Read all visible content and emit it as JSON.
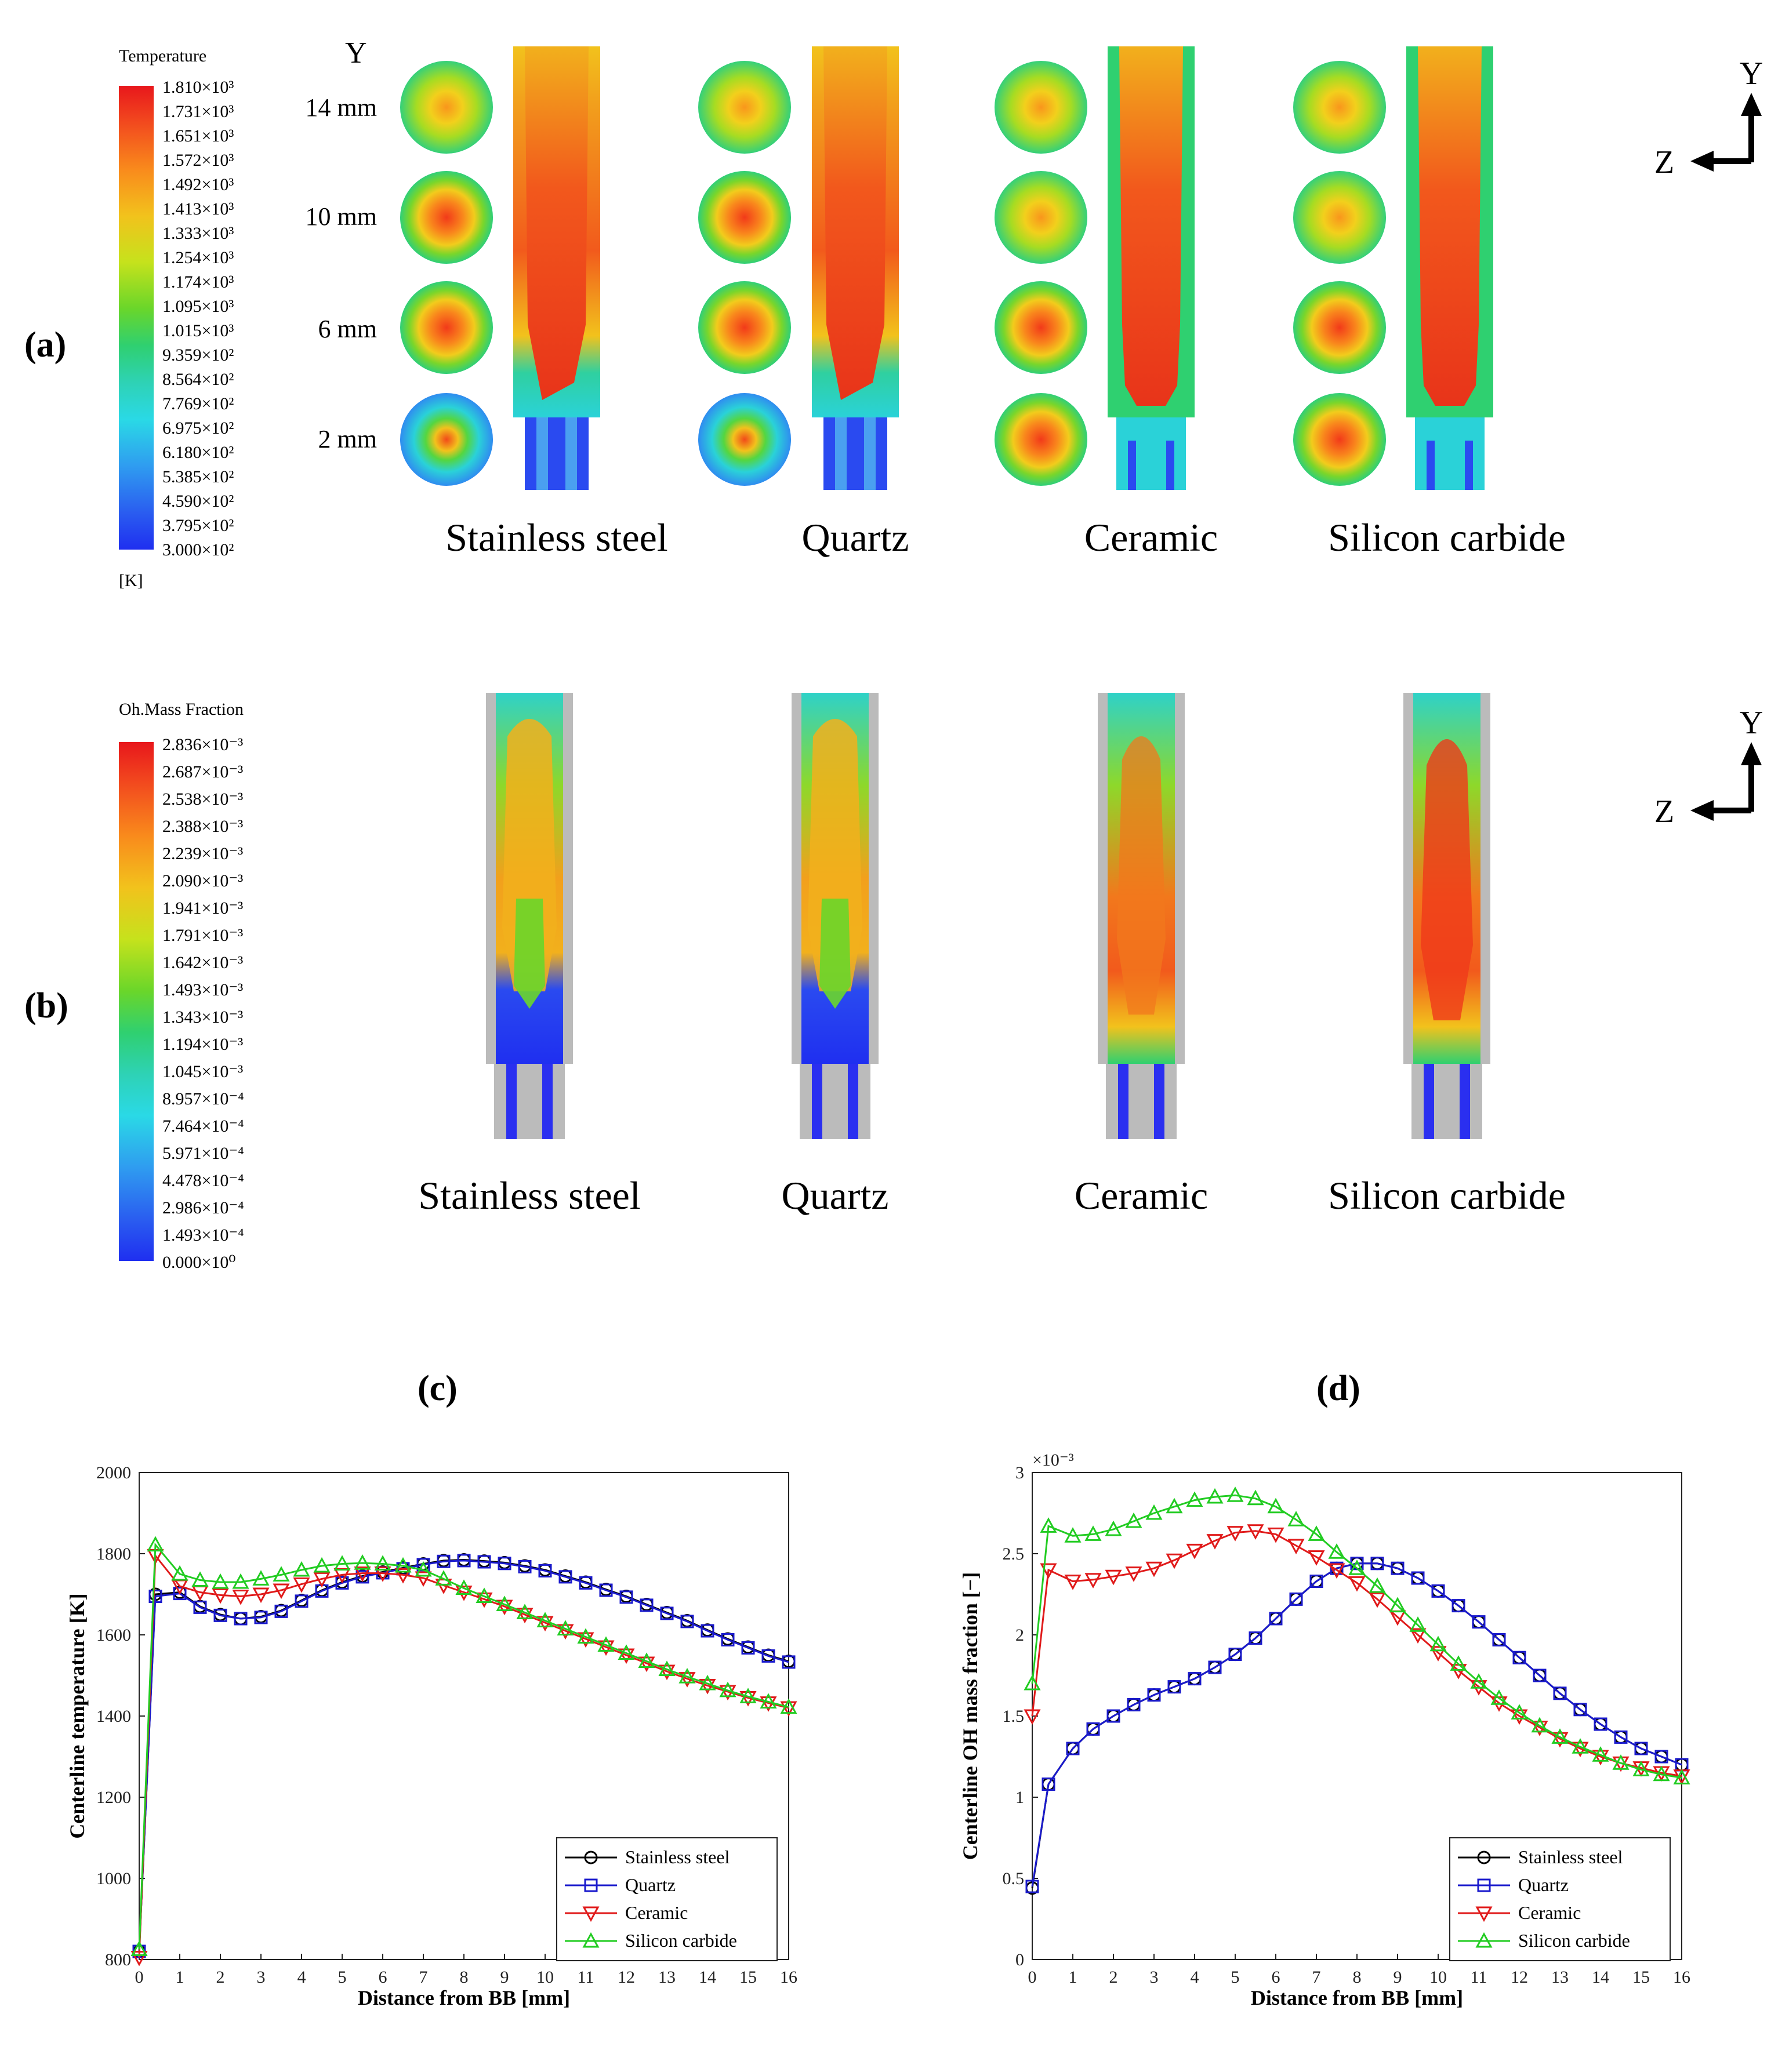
{
  "panel_labels": {
    "a": "(a)",
    "b": "(b)",
    "c": "(c)",
    "d": "(d)"
  },
  "colormap_a": {
    "title": "Temperature",
    "unit": "[K]",
    "ticks": [
      "1.810×10³",
      "1.731×10³",
      "1.651×10³",
      "1.572×10³",
      "1.492×10³",
      "1.413×10³",
      "1.333×10³",
      "1.254×10³",
      "1.174×10³",
      "1.095×10³",
      "1.015×10³",
      "9.359×10²",
      "8.564×10²",
      "7.769×10²",
      "6.975×10²",
      "6.180×10²",
      "5.385×10²",
      "4.590×10²",
      "3.795×10²",
      "3.000×10²"
    ]
  },
  "colormap_b": {
    "title": "Oh.Mass Fraction",
    "ticks": [
      "2.836×10⁻³",
      "2.687×10⁻³",
      "2.538×10⁻³",
      "2.388×10⁻³",
      "2.239×10⁻³",
      "2.090×10⁻³",
      "1.941×10⁻³",
      "1.791×10⁻³",
      "1.642×10⁻³",
      "1.493×10⁻³",
      "1.343×10⁻³",
      "1.194×10⁻³",
      "1.045×10⁻³",
      "8.957×10⁻⁴",
      "7.464×10⁻⁴",
      "5.971×10⁻⁴",
      "4.478×10⁻⁴",
      "2.986×10⁻⁴",
      "1.493×10⁻⁴",
      "0.000×10⁰"
    ]
  },
  "contour_a": {
    "y_axis_label": "Y",
    "slice_labels": [
      "14 mm",
      "10 mm",
      "6 mm",
      "2 mm"
    ],
    "materials": [
      "Stainless steel",
      "Quartz",
      "Ceramic",
      "Silicon carbide"
    ]
  },
  "contour_b": {
    "materials": [
      "Stainless steel",
      "Quartz",
      "Ceramic",
      "Silicon carbide"
    ]
  },
  "axes_indicator": {
    "y": "Y",
    "z": "Z"
  },
  "colors": {
    "stainless": "#000000",
    "quartz": "#1a1acc",
    "ceramic": "#e01a1a",
    "silicon": "#22cc22"
  },
  "chart_data": [
    {
      "type": "line",
      "id": "c",
      "title": "",
      "xlabel": "Distance from BB [mm]",
      "ylabel": "Centerline temperature [K]",
      "xlim": [
        0,
        16
      ],
      "ylim": [
        800,
        2000
      ],
      "xticks": [
        0,
        1,
        2,
        3,
        4,
        5,
        6,
        7,
        8,
        9,
        10,
        11,
        12,
        13,
        14,
        15,
        16
      ],
      "yticks": [
        800,
        1000,
        1200,
        1400,
        1600,
        1800,
        2000
      ],
      "x": [
        0,
        0.4,
        1,
        1.5,
        2,
        2.5,
        3,
        3.5,
        4,
        4.5,
        5,
        5.5,
        6,
        6.5,
        7,
        7.5,
        8,
        8.5,
        9,
        9.5,
        10,
        10.5,
        11,
        11.5,
        12,
        12.5,
        13,
        13.5,
        14,
        14.5,
        15,
        15.5,
        16
      ],
      "series": [
        {
          "name": "Stainless steel",
          "marker": "circle",
          "color": "#000000",
          "values": [
            820,
            1700,
            1705,
            1670,
            1650,
            1640,
            1645,
            1660,
            1685,
            1710,
            1730,
            1745,
            1755,
            1765,
            1775,
            1783,
            1785,
            1782,
            1778,
            1770,
            1760,
            1745,
            1730,
            1712,
            1695,
            1675,
            1655,
            1635,
            1612,
            1590,
            1570,
            1550,
            1535
          ]
        },
        {
          "name": "Quartz",
          "marker": "square",
          "color": "#1a1acc",
          "values": [
            820,
            1695,
            1702,
            1668,
            1648,
            1640,
            1643,
            1658,
            1683,
            1708,
            1728,
            1743,
            1753,
            1763,
            1773,
            1781,
            1783,
            1780,
            1776,
            1768,
            1758,
            1743,
            1728,
            1710,
            1693,
            1673,
            1653,
            1633,
            1610,
            1588,
            1568,
            1548,
            1533
          ]
        },
        {
          "name": "Ceramic",
          "marker": "triangle-down",
          "color": "#e01a1a",
          "values": [
            805,
            1795,
            1720,
            1705,
            1698,
            1695,
            1700,
            1710,
            1725,
            1738,
            1748,
            1752,
            1752,
            1748,
            1740,
            1722,
            1705,
            1688,
            1670,
            1650,
            1630,
            1610,
            1590,
            1570,
            1550,
            1530,
            1510,
            1492,
            1475,
            1460,
            1445,
            1432,
            1420
          ]
        },
        {
          "name": "Silicon carbide",
          "marker": "triangle-up",
          "color": "#22cc22",
          "values": [
            825,
            1822,
            1750,
            1735,
            1730,
            1730,
            1738,
            1748,
            1760,
            1770,
            1775,
            1777,
            1775,
            1770,
            1760,
            1738,
            1715,
            1695,
            1675,
            1655,
            1635,
            1615,
            1595,
            1575,
            1555,
            1535,
            1515,
            1497,
            1480,
            1463,
            1448,
            1435,
            1422
          ]
        }
      ]
    },
    {
      "type": "line",
      "id": "d",
      "title": "",
      "exponent_label": "×10⁻³",
      "xlabel": "Distance from BB [mm]",
      "ylabel": "Centerline OH mass fraction [−]",
      "xlim": [
        0,
        16
      ],
      "ylim": [
        0,
        3
      ],
      "xticks": [
        0,
        1,
        2,
        3,
        4,
        5,
        6,
        7,
        8,
        9,
        10,
        11,
        12,
        13,
        14,
        15,
        16
      ],
      "yticks": [
        0,
        0.5,
        1,
        1.5,
        2,
        2.5,
        3
      ],
      "ytick_labels": [
        "0",
        "0.5",
        "1",
        "1.5",
        "2",
        "2.5",
        "3"
      ],
      "x": [
        0,
        0.4,
        1,
        1.5,
        2,
        2.5,
        3,
        3.5,
        4,
        4.5,
        5,
        5.5,
        6,
        6.5,
        7,
        7.5,
        8,
        8.5,
        9,
        9.5,
        10,
        10.5,
        11,
        11.5,
        12,
        12.5,
        13,
        13.5,
        14,
        14.5,
        15,
        15.5,
        16
      ],
      "series": [
        {
          "name": "Stainless steel",
          "marker": "circle",
          "color": "#000000",
          "values": [
            0.44,
            1.08,
            1.3,
            1.42,
            1.5,
            1.57,
            1.63,
            1.68,
            1.73,
            1.8,
            1.88,
            1.98,
            2.1,
            2.22,
            2.33,
            2.41,
            2.44,
            2.44,
            2.41,
            2.35,
            2.27,
            2.18,
            2.08,
            1.97,
            1.86,
            1.75,
            1.64,
            1.54,
            1.45,
            1.37,
            1.3,
            1.25,
            1.2
          ]
        },
        {
          "name": "Quartz",
          "marker": "square",
          "color": "#1a1acc",
          "values": [
            0.45,
            1.08,
            1.3,
            1.42,
            1.5,
            1.57,
            1.63,
            1.68,
            1.73,
            1.8,
            1.88,
            1.98,
            2.1,
            2.22,
            2.33,
            2.41,
            2.44,
            2.44,
            2.41,
            2.35,
            2.27,
            2.18,
            2.08,
            1.97,
            1.86,
            1.75,
            1.64,
            1.54,
            1.45,
            1.37,
            1.3,
            1.25,
            1.2
          ]
        },
        {
          "name": "Ceramic",
          "marker": "triangle-down",
          "color": "#e01a1a",
          "values": [
            1.5,
            2.4,
            2.33,
            2.34,
            2.36,
            2.38,
            2.41,
            2.46,
            2.52,
            2.58,
            2.63,
            2.64,
            2.62,
            2.55,
            2.48,
            2.4,
            2.32,
            2.22,
            2.11,
            2.0,
            1.89,
            1.78,
            1.68,
            1.58,
            1.5,
            1.43,
            1.36,
            1.3,
            1.25,
            1.21,
            1.18,
            1.15,
            1.13
          ]
        },
        {
          "name": "Silicon carbide",
          "marker": "triangle-up",
          "color": "#22cc22",
          "values": [
            1.7,
            2.67,
            2.61,
            2.62,
            2.65,
            2.7,
            2.75,
            2.79,
            2.83,
            2.85,
            2.86,
            2.84,
            2.79,
            2.71,
            2.62,
            2.51,
            2.41,
            2.3,
            2.18,
            2.06,
            1.94,
            1.82,
            1.71,
            1.61,
            1.52,
            1.44,
            1.37,
            1.31,
            1.26,
            1.21,
            1.17,
            1.14,
            1.12
          ]
        }
      ]
    }
  ]
}
